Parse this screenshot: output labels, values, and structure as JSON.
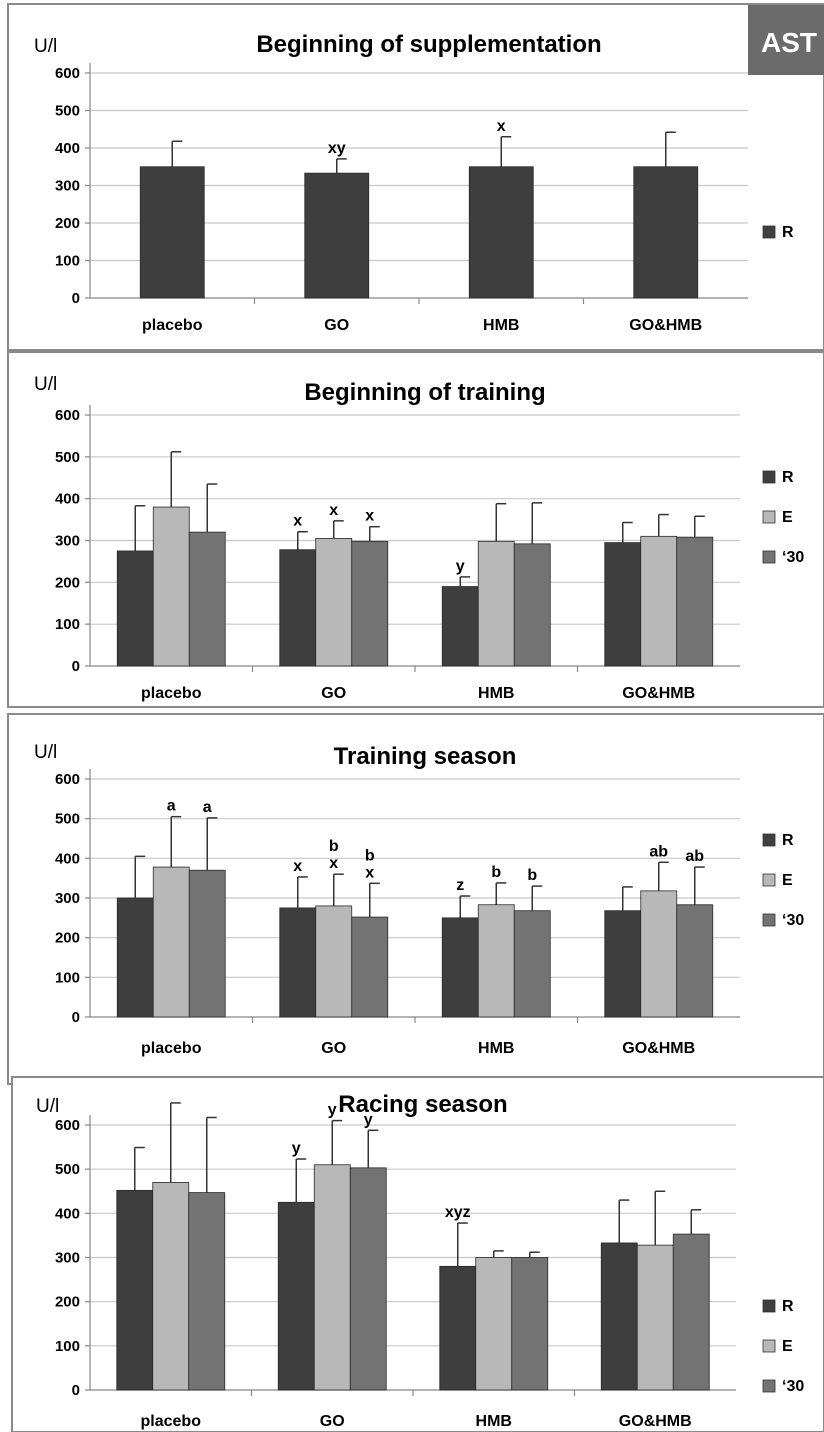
{
  "badge": {
    "label": "AST",
    "color": "#6b6b6b"
  },
  "colors": {
    "R": "#3e3e3e",
    "E": "#b8b8b8",
    "'30": "#737373",
    "grid": "#c8c8c8",
    "axis": "#888888",
    "frame": "#8a8a8a"
  },
  "chart_data": [
    {
      "type": "bar",
      "title": "Beginning of supplementation",
      "ylabel": "U/l",
      "ylim": [
        0,
        600
      ],
      "yticks": [
        0,
        100,
        200,
        300,
        400,
        500,
        600
      ],
      "grid": true,
      "legend_position": "right",
      "categories": [
        "placebo",
        "GO",
        "HMB",
        "GO&HMB"
      ],
      "series": [
        {
          "name": "R",
          "values": [
            350,
            333,
            350,
            350
          ],
          "errors": [
            68,
            38,
            80,
            92
          ],
          "annotations": [
            "",
            "xy",
            "x",
            ""
          ]
        }
      ]
    },
    {
      "type": "bar",
      "title": "Beginning of training",
      "ylabel": "U/l",
      "ylim": [
        0,
        600
      ],
      "yticks": [
        0,
        100,
        200,
        300,
        400,
        500,
        600
      ],
      "grid": true,
      "legend_position": "right",
      "categories": [
        "placebo",
        "GO",
        "HMB",
        "GO&HMB"
      ],
      "series": [
        {
          "name": "R",
          "values": [
            275,
            278,
            190,
            295
          ],
          "errors": [
            108,
            43,
            23,
            48
          ],
          "annotations": [
            "",
            "x",
            "y",
            ""
          ]
        },
        {
          "name": "E",
          "values": [
            380,
            305,
            298,
            310
          ],
          "errors": [
            132,
            42,
            90,
            52
          ],
          "annotations": [
            "",
            "x",
            "",
            ""
          ]
        },
        {
          "name": "‘30",
          "values": [
            320,
            298,
            292,
            308
          ],
          "errors": [
            115,
            35,
            98,
            50
          ],
          "annotations": [
            "",
            "x",
            "",
            ""
          ]
        }
      ]
    },
    {
      "type": "bar",
      "title": "Training season",
      "ylabel": "U/l",
      "ylim": [
        0,
        600
      ],
      "yticks": [
        0,
        100,
        200,
        300,
        400,
        500,
        600
      ],
      "grid": true,
      "legend_position": "right",
      "categories": [
        "placebo",
        "GO",
        "HMB",
        "GO&HMB"
      ],
      "series": [
        {
          "name": "R",
          "values": [
            300,
            275,
            250,
            268
          ],
          "errors": [
            105,
            78,
            55,
            60
          ],
          "annotations": [
            "",
            "x",
            "z",
            ""
          ]
        },
        {
          "name": "E",
          "values": [
            378,
            280,
            283,
            318
          ],
          "errors": [
            127,
            80,
            55,
            72
          ],
          "annotations": [
            "a",
            "b\nx",
            "b",
            "ab"
          ]
        },
        {
          "name": "‘30",
          "values": [
            370,
            252,
            268,
            283
          ],
          "errors": [
            132,
            85,
            62,
            95
          ],
          "annotations": [
            "a",
            "b\nx",
            "b",
            "ab"
          ]
        }
      ]
    },
    {
      "type": "bar",
      "title": "Racing season",
      "ylabel": "U/l",
      "ylim": [
        0,
        600
      ],
      "yticks": [
        0,
        100,
        200,
        300,
        400,
        500,
        600
      ],
      "grid": true,
      "legend_position": "right",
      "categories": [
        "placebo",
        "GO",
        "HMB",
        "GO&HMB"
      ],
      "series": [
        {
          "name": "R",
          "values": [
            452,
            425,
            280,
            333
          ],
          "errors": [
            97,
            98,
            98,
            97
          ],
          "annotations": [
            "",
            "y",
            "xyz",
            ""
          ]
        },
        {
          "name": "E",
          "values": [
            470,
            510,
            300,
            328
          ],
          "errors": [
            180,
            100,
            15,
            122
          ],
          "annotations": [
            "",
            "y",
            "",
            ""
          ]
        },
        {
          "name": "‘30",
          "values": [
            447,
            503,
            300,
            353
          ],
          "errors": [
            170,
            85,
            12,
            55
          ],
          "annotations": [
            "",
            "y",
            "",
            ""
          ]
        }
      ]
    }
  ]
}
